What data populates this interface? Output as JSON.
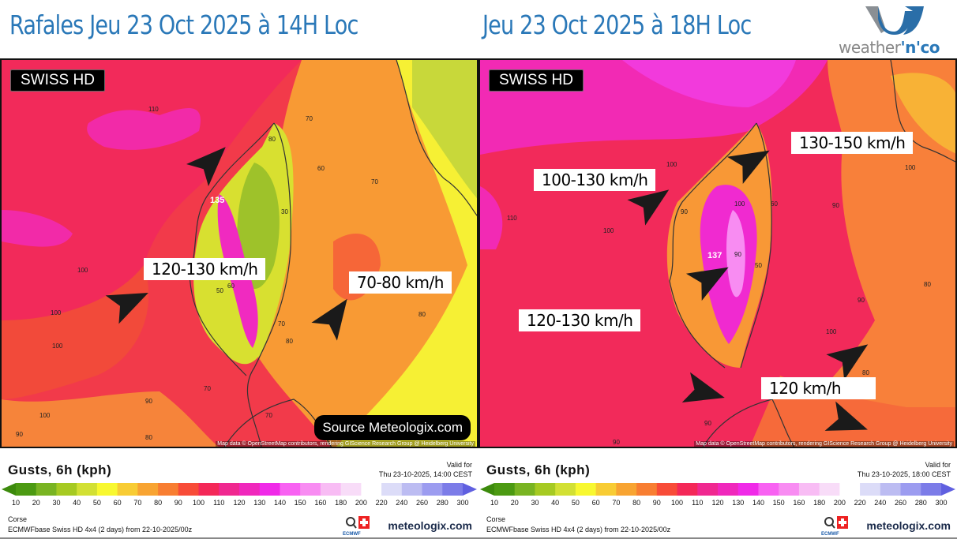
{
  "header": {
    "left_title": "Rafales  Jeu 23 Oct 2025 à 14H Loc",
    "right_title": "Jeu 23 Oct 2025 à 18H Loc",
    "logo_text_a": "weather",
    "logo_text_b": "'n'co"
  },
  "maps": [
    {
      "badge": "SWISS HD",
      "annotations": [
        "120-130 km/h",
        "70-80 km/h"
      ],
      "contour_labels": [
        "110",
        "80",
        "70",
        "60",
        "70",
        "135",
        "30",
        "100",
        "100",
        "100",
        "60",
        "50",
        "70",
        "80",
        "80",
        "70",
        "90",
        "100",
        "90",
        "80",
        "70"
      ],
      "attribution": "Map data © OpenStreetMap contributors, rendering GIScience Research Group @ Heidelberg University",
      "source": "Source Meteologix.com"
    },
    {
      "badge": "SWISS HD",
      "annotations": [
        "100-130 km/h",
        "130-150 km/h",
        "120-130 km/h",
        "120 km/h"
      ],
      "contour_labels": [
        "100",
        "110",
        "100",
        "90",
        "100",
        "137",
        "90",
        "50",
        "60",
        "100",
        "90",
        "90",
        "100",
        "80",
        "80",
        "90",
        "90"
      ],
      "attribution": "Map data © OpenStreetMap contributors, rendering GIScience Research Group @ Heidelberg University"
    }
  ],
  "legends": [
    {
      "title": "Gusts, 6h (kph)",
      "valid_label": "Valid for",
      "valid_time": "Thu 23-10-2025, 14:00 CEST",
      "region": "Corse",
      "model": "ECMWFbase Swiss HD 4x4 (2 days) from  22-10-2025/00z",
      "brand": "meteologix.com"
    },
    {
      "title": "Gusts, 6h (kph)",
      "valid_label": "Valid for",
      "valid_time": "Thu 23-10-2025, 18:00 CEST",
      "region": "Corse",
      "model": "ECMWFbase Swiss HD 4x4 (2 days) from  22-10-2025/00z",
      "brand": "meteologix.com"
    }
  ],
  "scale": {
    "ticks": [
      "10",
      "20",
      "30",
      "40",
      "50",
      "60",
      "70",
      "80",
      "90",
      "100",
      "110",
      "120",
      "130",
      "140",
      "150",
      "160",
      "180",
      "200",
      "220",
      "240",
      "260",
      "280",
      "300"
    ],
    "colors": [
      "#4c9a12",
      "#79b422",
      "#a6ca22",
      "#d2e034",
      "#f8f830",
      "#f8cc34",
      "#f8a432",
      "#f87e32",
      "#f84c38",
      "#f42858",
      "#f02890",
      "#f028bc",
      "#f02ae8",
      "#f862f2",
      "#f88cf2",
      "#f8bcf4",
      "#f8dcf8",
      "#ffffff",
      "#dcdcf8",
      "#bcbcf2",
      "#9c9cf0",
      "#7c7ce8"
    ],
    "under_color": "#3c8a0c",
    "over_color": "#6060e0"
  }
}
